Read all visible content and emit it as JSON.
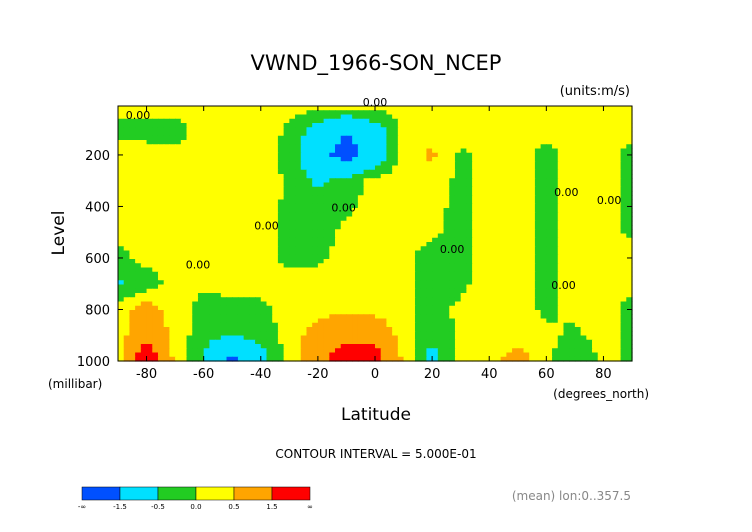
{
  "chart_data": {
    "type": "heatmap",
    "title": "VWND_1966-SON_NCEP",
    "units_label": "(units:m/s)",
    "ylabel": "Level",
    "y_unit_label": "(millibar)",
    "xlabel": "Latitude",
    "x_unit_label": "(degrees_north)",
    "xlim": [
      -90,
      90
    ],
    "ylim": [
      1000,
      10
    ],
    "x_ticks": [
      -80,
      -60,
      -40,
      -20,
      0,
      20,
      40,
      60,
      80
    ],
    "x_tick_labels": [
      "-80",
      "-60",
      "-40",
      "-20",
      "0",
      "20",
      "40",
      "60",
      "80"
    ],
    "y_ticks": [
      200,
      400,
      600,
      800,
      1000
    ],
    "y_tick_labels": [
      "200",
      "400",
      "600",
      "800",
      "1000"
    ],
    "contour_interval_label": "CONTOUR INTERVAL = 5.000E-01",
    "footnote": "(mean) lon:0..357.5",
    "contour_labels": [
      "0.00",
      "0.00",
      "0.00",
      "0.00",
      "0.00",
      "0.00",
      "0.00",
      "0.00",
      "0.00"
    ],
    "levels": [
      {
        "label": "-∞",
        "value": null
      },
      {
        "label": "-1.5",
        "value": -1.5
      },
      {
        "label": "-0.5",
        "value": -0.5
      },
      {
        "label": "0.0",
        "value": 0.0
      },
      {
        "label": "0.5",
        "value": 0.5
      },
      {
        "label": "1.5",
        "value": 1.5
      },
      {
        "label": "∞",
        "value": null
      }
    ],
    "colorbar": [
      {
        "range": "below -1.5",
        "color": "#0050ff"
      },
      {
        "range": "-1.5 to -0.5",
        "color": "#00e0ff"
      },
      {
        "range": "-0.5 to 0.0",
        "color": "#22cc22"
      },
      {
        "range": "0.0 to 0.5",
        "color": "#ffff00"
      },
      {
        "range": "0.5 to 1.5",
        "color": "#ffa500"
      },
      {
        "range": "above 1.5",
        "color": "#ff0000"
      }
    ],
    "field_lat": [
      -90,
      -80,
      -70,
      -60,
      -50,
      -40,
      -30,
      -20,
      -10,
      0,
      10,
      20,
      30,
      40,
      50,
      60,
      70,
      80,
      90
    ],
    "field_lev": [
      1000,
      900,
      800,
      700,
      600,
      500,
      400,
      300,
      200,
      100,
      10
    ],
    "values": [
      [
        0.2,
        2.5,
        0.3,
        -0.6,
        -1.8,
        -0.8,
        0.2,
        1.2,
        2.2,
        2.0,
        0.4,
        -0.8,
        0.2,
        0.3,
        0.8,
        0.2,
        -0.6,
        0.2,
        -0.1
      ],
      [
        0.2,
        1.2,
        0.3,
        -0.3,
        -0.5,
        -0.3,
        0.2,
        0.8,
        1.2,
        1.2,
        0.2,
        -0.3,
        0.1,
        0.3,
        0.2,
        0.1,
        -0.1,
        0.2,
        -0.1
      ],
      [
        0.3,
        0.8,
        0.2,
        -0.2,
        -0.2,
        -0.1,
        0.2,
        0.3,
        0.4,
        0.3,
        0.1,
        -0.2,
        0.1,
        0.2,
        0.2,
        -0.1,
        0.1,
        0.2,
        -0.2
      ],
      [
        -0.6,
        -0.3,
        0.2,
        0.1,
        0.2,
        0.1,
        0.2,
        0.2,
        0.2,
        0.2,
        0.1,
        -0.2,
        -0.1,
        0.2,
        0.2,
        -0.1,
        0.2,
        0.2,
        0.2
      ],
      [
        -0.2,
        0.2,
        0.2,
        0.1,
        0.2,
        0.1,
        -0.1,
        -0.1,
        0.2,
        0.2,
        0.1,
        -0.2,
        -0.1,
        0.2,
        0.2,
        -0.1,
        0.2,
        0.2,
        0.2
      ],
      [
        0.2,
        0.2,
        0.2,
        0.2,
        0.1,
        0.1,
        -0.1,
        -0.2,
        0.1,
        0.2,
        0.2,
        0.1,
        -0.2,
        0.2,
        0.2,
        -0.1,
        0.2,
        0.2,
        -0.1
      ],
      [
        0.2,
        0.2,
        0.2,
        0.2,
        0.1,
        0.2,
        -0.1,
        -0.3,
        -0.1,
        0.2,
        0.2,
        0.2,
        -0.2,
        0.2,
        0.2,
        -0.2,
        0.2,
        0.2,
        -0.1
      ],
      [
        0.2,
        0.2,
        0.2,
        0.2,
        0.1,
        0.3,
        -0.1,
        -0.6,
        -0.3,
        0.2,
        0.2,
        0.2,
        -0.1,
        0.2,
        0.2,
        -0.2,
        0.2,
        0.2,
        -0.1
      ],
      [
        0.2,
        0.2,
        0.1,
        0.2,
        0.2,
        0.2,
        -0.2,
        -1.2,
        -1.9,
        -1.1,
        0.2,
        0.6,
        -0.1,
        0.2,
        0.2,
        -0.2,
        0.2,
        0.2,
        -0.2
      ],
      [
        -0.2,
        -0.2,
        -0.2,
        0.2,
        0.2,
        0.3,
        -0.1,
        -0.8,
        -1.4,
        -0.8,
        0.1,
        0.3,
        0.2,
        0.2,
        0.2,
        0.2,
        0.3,
        0.2,
        0.2
      ],
      [
        0.2,
        0.2,
        0.2,
        0.2,
        0.2,
        0.2,
        0.2,
        0.2,
        0.2,
        0.2,
        0.2,
        0.2,
        0.2,
        0.2,
        0.2,
        0.2,
        0.2,
        0.2,
        0.2
      ]
    ]
  }
}
